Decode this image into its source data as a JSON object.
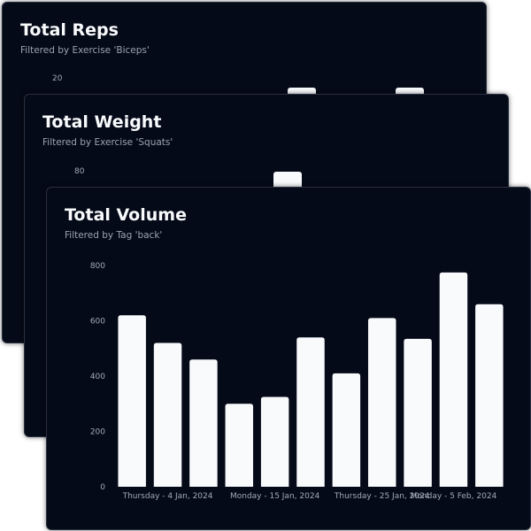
{
  "cards": [
    {
      "title": "Total Reps",
      "subtitle": "Filtered by Exercise 'Biceps'",
      "visible_ticks": [
        "20"
      ]
    },
    {
      "title": "Total Weight",
      "subtitle": "Filtered by Exercise 'Squats'",
      "visible_ticks": [
        "80"
      ]
    }
  ],
  "chart_data": {
    "type": "bar",
    "title": "Total Volume",
    "subtitle": "Filtered by Tag 'back'",
    "categories": [
      "",
      "Thursday - 4 Jan, 2024",
      "",
      "",
      "Monday - 15 Jan, 2024",
      "",
      "",
      "Thursday - 25 Jan, 2024",
      "",
      "Monday - 5 Feb, 2024",
      ""
    ],
    "values": [
      620,
      520,
      460,
      300,
      325,
      540,
      410,
      610,
      535,
      775,
      660
    ],
    "yticks": [
      0,
      200,
      400,
      600,
      800
    ],
    "ylim": [
      0,
      800
    ],
    "grid": false,
    "bar_color": "#f8fafc",
    "background": "#050a18"
  }
}
